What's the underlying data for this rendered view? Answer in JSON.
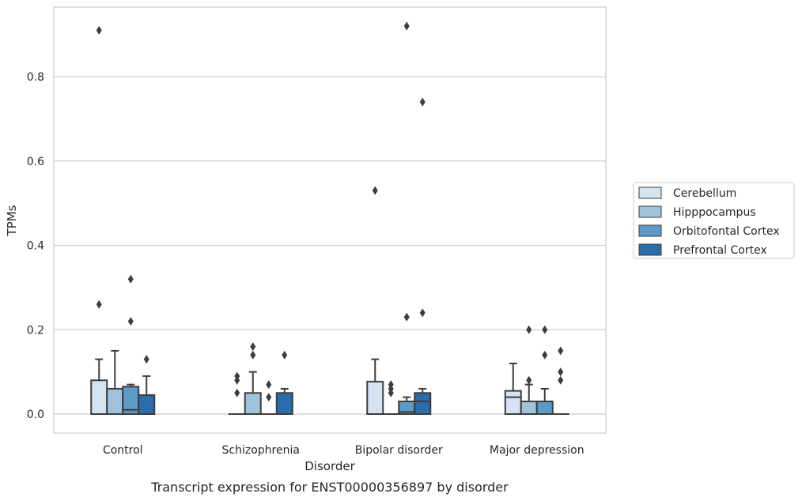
{
  "chart_data": {
    "type": "box",
    "caption": "Transcript expression for ENST00000356897 by disorder",
    "xlabel": "Disorder",
    "ylabel": "TPMs",
    "ylim": [
      -0.045,
      0.965
    ],
    "yticks": [
      "0.0",
      "0.2",
      "0.4",
      "0.6",
      "0.8"
    ],
    "grid": "horizontal",
    "legend_position": "right",
    "categories": [
      "Control",
      "Schizophrenia",
      "Bipolar disorder",
      "Major depression"
    ],
    "series": [
      {
        "name": "Cerebellum",
        "color": "#d4e3f1",
        "boxes": [
          {
            "q1": 0.0,
            "median": 0.0,
            "q3": 0.08,
            "whisker_low": 0.0,
            "whisker_high": 0.13,
            "outliers": [
              0.26,
              0.91
            ]
          },
          {
            "q1": 0.0,
            "median": 0.0,
            "q3": 0.0,
            "whisker_low": 0.0,
            "whisker_high": 0.0,
            "outliers": [
              0.05,
              0.08,
              0.09
            ]
          },
          {
            "q1": 0.0,
            "median": 0.0,
            "q3": 0.077,
            "whisker_low": 0.0,
            "whisker_high": 0.13,
            "outliers": [
              0.53
            ]
          },
          {
            "q1": 0.0,
            "median": 0.04,
            "q3": 0.055,
            "whisker_low": 0.0,
            "whisker_high": 0.12,
            "outliers": []
          }
        ]
      },
      {
        "name": "Hipppocampus",
        "color": "#9ec3db",
        "boxes": [
          {
            "q1": 0.0,
            "median": 0.0,
            "q3": 0.06,
            "whisker_low": 0.0,
            "whisker_high": 0.15,
            "outliers": []
          },
          {
            "q1": 0.0,
            "median": 0.0,
            "q3": 0.05,
            "whisker_low": 0.0,
            "whisker_high": 0.1,
            "outliers": [
              0.14,
              0.16
            ]
          },
          {
            "q1": 0.0,
            "median": 0.0,
            "q3": 0.0,
            "whisker_low": 0.0,
            "whisker_high": 0.0,
            "outliers": [
              0.05,
              0.06,
              0.07
            ]
          },
          {
            "q1": 0.0,
            "median": 0.0,
            "q3": 0.03,
            "whisker_low": 0.0,
            "whisker_high": 0.07,
            "outliers": [
              0.08,
              0.2
            ]
          }
        ]
      },
      {
        "name": "Orbitofontal Cortex",
        "color": "#5b9bc8",
        "boxes": [
          {
            "q1": 0.0,
            "median": 0.01,
            "q3": 0.065,
            "whisker_low": 0.0,
            "whisker_high": 0.07,
            "outliers": [
              0.22,
              0.32
            ]
          },
          {
            "q1": 0.0,
            "median": 0.0,
            "q3": 0.0,
            "whisker_low": 0.0,
            "whisker_high": 0.0,
            "outliers": [
              0.04,
              0.07
            ]
          },
          {
            "q1": 0.0,
            "median": 0.005,
            "q3": 0.03,
            "whisker_low": 0.0,
            "whisker_high": 0.04,
            "outliers": [
              0.23,
              0.92
            ]
          },
          {
            "q1": 0.0,
            "median": 0.0,
            "q3": 0.03,
            "whisker_low": 0.0,
            "whisker_high": 0.06,
            "outliers": [
              0.14,
              0.2
            ]
          }
        ]
      },
      {
        "name": "Prefrontal Cortex",
        "color": "#2b6dac",
        "boxes": [
          {
            "q1": 0.0,
            "median": 0.0,
            "q3": 0.045,
            "whisker_low": 0.0,
            "whisker_high": 0.09,
            "outliers": [
              0.13
            ]
          },
          {
            "q1": 0.0,
            "median": 0.0,
            "q3": 0.05,
            "whisker_low": 0.0,
            "whisker_high": 0.06,
            "outliers": [
              0.14
            ]
          },
          {
            "q1": 0.0,
            "median": 0.03,
            "q3": 0.05,
            "whisker_low": 0.0,
            "whisker_high": 0.06,
            "outliers": [
              0.24,
              0.74
            ]
          },
          {
            "q1": 0.0,
            "median": 0.0,
            "q3": 0.0,
            "whisker_low": 0.0,
            "whisker_high": 0.0,
            "outliers": [
              0.08,
              0.1,
              0.15
            ]
          }
        ]
      }
    ]
  }
}
